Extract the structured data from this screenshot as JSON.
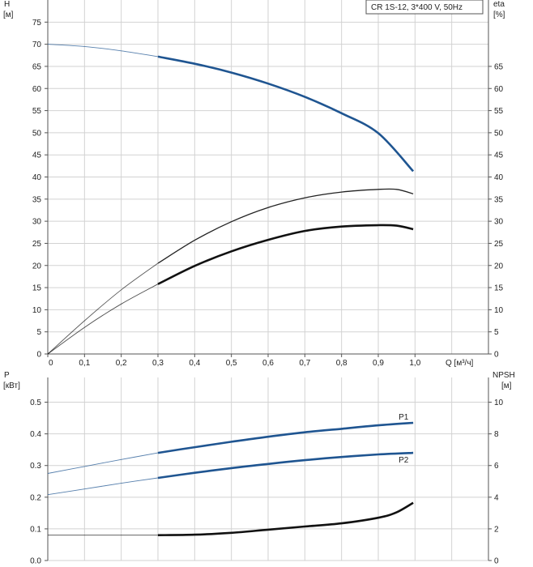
{
  "chart_data": [
    {
      "type": "line",
      "legend_title": "CR 1S-12, 3*400 V, 50Hz",
      "xlabel": "Q [м³/ч]",
      "ylabel_left_line1": "H",
      "ylabel_left_line2": "[м]",
      "ylabel_right_line1": "eta",
      "ylabel_right_line2": "[%]",
      "xlim": [
        0,
        1.2
      ],
      "ylim_left": [
        0,
        80
      ],
      "ylim_right": [
        0,
        80
      ],
      "x_ticks": [
        "0",
        "0,1",
        "0,2",
        "0,3",
        "0,4",
        "0,5",
        "0,6",
        "0,7",
        "0,8",
        "0,9",
        "1,0"
      ],
      "y_left_ticks": [
        "0",
        "5",
        "10",
        "15",
        "20",
        "25",
        "30",
        "35",
        "40",
        "45",
        "50",
        "55",
        "60",
        "65",
        "70",
        "75"
      ],
      "y_right_ticks": [
        "0",
        "5",
        "10",
        "15",
        "20",
        "25",
        "30",
        "35",
        "40",
        "45",
        "50",
        "55",
        "60",
        "65"
      ],
      "grid": true,
      "series": [
        {
          "axis": "left",
          "color": "#1f5591",
          "thin_until_x": 0.3,
          "points": [
            [
              0,
              70
            ],
            [
              0.1,
              69.5
            ],
            [
              0.2,
              68.5
            ],
            [
              0.3,
              67.2
            ],
            [
              0.4,
              65.6
            ],
            [
              0.5,
              63.6
            ],
            [
              0.6,
              61.1
            ],
            [
              0.7,
              58.1
            ],
            [
              0.8,
              54.4
            ],
            [
              0.9,
              49.9
            ],
            [
              0.995,
              41.3
            ]
          ]
        },
        {
          "axis": "right",
          "color": "#222222",
          "thin_until_x": 0.3,
          "points": [
            [
              0,
              0
            ],
            [
              0.1,
              7.5
            ],
            [
              0.2,
              14.5
            ],
            [
              0.3,
              20.5
            ],
            [
              0.4,
              25.7
            ],
            [
              0.5,
              29.9
            ],
            [
              0.6,
              33.1
            ],
            [
              0.7,
              35.3
            ],
            [
              0.8,
              36.6
            ],
            [
              0.9,
              37.2
            ],
            [
              0.95,
              37.2
            ],
            [
              0.995,
              36.2
            ]
          ]
        },
        {
          "axis": "right",
          "color": "#111111",
          "thin_until_x": 0.3,
          "points": [
            [
              0,
              0
            ],
            [
              0.1,
              6
            ],
            [
              0.2,
              11.3
            ],
            [
              0.3,
              15.8
            ],
            [
              0.4,
              19.9
            ],
            [
              0.5,
              23.2
            ],
            [
              0.6,
              25.8
            ],
            [
              0.7,
              27.8
            ],
            [
              0.8,
              28.8
            ],
            [
              0.9,
              29.1
            ],
            [
              0.95,
              29
            ],
            [
              0.995,
              28.2
            ]
          ]
        }
      ]
    },
    {
      "type": "line",
      "ylabel_left_line1": "P",
      "ylabel_left_line2": "[кВт]",
      "ylabel_right_line1": "NPSH",
      "ylabel_right_line2": "[м]",
      "xlim": [
        0,
        1.2
      ],
      "ylim_left": [
        0,
        0.55
      ],
      "ylim_right": [
        0,
        11
      ],
      "y_left_ticks": [
        0,
        0.1,
        0.2,
        0.3,
        0.4,
        0.5
      ],
      "y_left_tick_labels": [
        "0.0",
        "0.1",
        "0.2",
        "0.3",
        "0.4",
        "0.5"
      ],
      "y_right_ticks": [
        0,
        2,
        4,
        6,
        8,
        10
      ],
      "y_right_tick_labels": [
        "0",
        "2",
        "4",
        "6",
        "8",
        "10"
      ],
      "grid": true,
      "series": [
        {
          "name": "P1",
          "axis": "left",
          "color": "#1f5591",
          "thin_until_x": 0.3,
          "points": [
            [
              0,
              0.275
            ],
            [
              0.1,
              0.297
            ],
            [
              0.2,
              0.319
            ],
            [
              0.3,
              0.34
            ],
            [
              0.4,
              0.358
            ],
            [
              0.5,
              0.375
            ],
            [
              0.6,
              0.391
            ],
            [
              0.7,
              0.405
            ],
            [
              0.8,
              0.416
            ],
            [
              0.9,
              0.427
            ],
            [
              0.995,
              0.435
            ]
          ]
        },
        {
          "name": "P2",
          "axis": "left",
          "color": "#1f5591",
          "thin_until_x": 0.3,
          "points": [
            [
              0,
              0.208
            ],
            [
              0.1,
              0.226
            ],
            [
              0.2,
              0.244
            ],
            [
              0.3,
              0.261
            ],
            [
              0.4,
              0.277
            ],
            [
              0.5,
              0.292
            ],
            [
              0.6,
              0.305
            ],
            [
              0.7,
              0.317
            ],
            [
              0.8,
              0.327
            ],
            [
              0.9,
              0.335
            ],
            [
              0.995,
              0.34
            ]
          ]
        },
        {
          "axis": "right",
          "color": "#111111",
          "thin_until_x": 0.3,
          "points": [
            [
              0,
              1.6
            ],
            [
              0.1,
              1.6
            ],
            [
              0.2,
              1.6
            ],
            [
              0.3,
              1.6
            ],
            [
              0.4,
              1.63
            ],
            [
              0.5,
              1.75
            ],
            [
              0.6,
              1.95
            ],
            [
              0.7,
              2.15
            ],
            [
              0.8,
              2.35
            ],
            [
              0.9,
              2.7
            ],
            [
              0.95,
              3.05
            ],
            [
              0.995,
              3.65
            ]
          ]
        }
      ]
    }
  ]
}
